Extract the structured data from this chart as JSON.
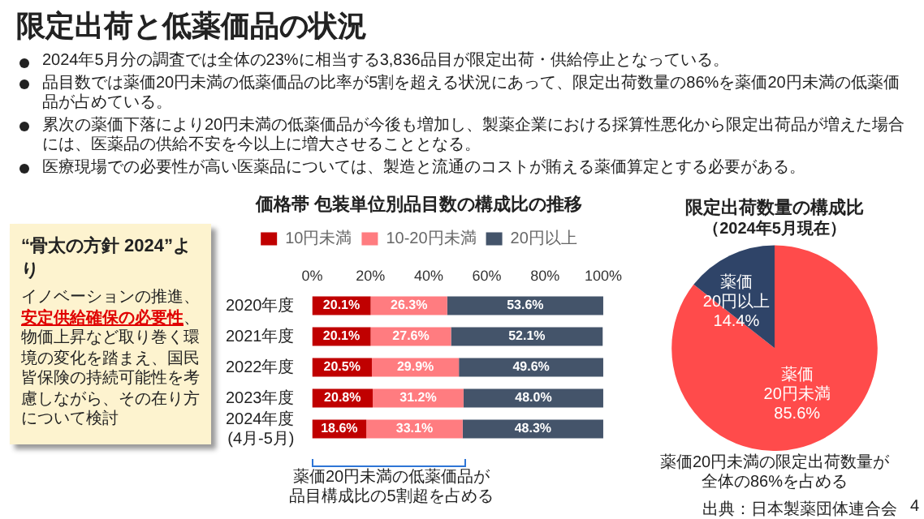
{
  "chart_data": [
    {
      "type": "other",
      "title": "限定出荷と低薬価品の状況",
      "annotations": [
        "2024年5月分の調査では全体の23%に相当する3,836品目が限定出荷・供給停止となっている。",
        "品目数では薬価20円未満の低薬価品の比率が5割を超える状況にあって、限定出荷数量の86%を薬価20円未満の低薬価品が占めている。",
        "累次の薬価下落により20円未満の低薬価品が今後も増加し、製薬企業における採算性悪化から限定出荷品が増えた場合には、医薬品の供給不安を今以上に増大させることとなる。",
        "医療現場での必要性が高い医薬品については、製造と流通のコストが賄える薬価算定とする必要がある。"
      ]
    },
    {
      "type": "other",
      "title": "“骨太の方針 2024”より",
      "annotations": [
        "イノベーションの推進、",
        "安定供給確保の必要性",
        "、物価上昇など取り巻く環境の変化を踏まえ、国民皆保険の持続可能性を考慮しながら、その在り方について検討"
      ]
    },
    {
      "type": "bar",
      "orientation": "horizontal",
      "stacked": true,
      "title": "価格帯 包装単位別品目数の構成比の推移",
      "categories": [
        "2020年度",
        "2021年度",
        "2022年度",
        "2023年度",
        "2024年度\n(4月-5月)"
      ],
      "series": [
        {
          "name": "10円未満",
          "color": "#c00000",
          "values": [
            20.1,
            20.1,
            20.5,
            20.8,
            18.6
          ],
          "value_labels": [
            "20.1%",
            "20.1%",
            "20.5%",
            "20.8%",
            "18.6%"
          ]
        },
        {
          "name": "10-20円未満",
          "color": "#ff7c80",
          "values": [
            26.3,
            27.6,
            29.9,
            31.2,
            33.1
          ],
          "value_labels": [
            "26.3%",
            "27.6%",
            "29.9%",
            "31.2%",
            "33.1%"
          ]
        },
        {
          "name": "20円以上",
          "color": "#44546a",
          "values": [
            53.6,
            52.1,
            49.6,
            48.0,
            48.3
          ],
          "value_labels": [
            "53.6%",
            "52.1%",
            "49.6%",
            "48.0%",
            "48.3%"
          ]
        }
      ],
      "xlim": [
        0,
        100
      ],
      "xticks": [
        {
          "value": 0,
          "label": "0%"
        },
        {
          "value": 20,
          "label": "20%"
        },
        {
          "value": 40,
          "label": "40%"
        },
        {
          "value": 60,
          "label": "60%"
        },
        {
          "value": 80,
          "label": "80%"
        },
        {
          "value": 100,
          "label": "100%"
        }
      ],
      "legend": "top",
      "annotations": [
        "薬価20円未満の低薬価品が品目構成比の5割超を占める"
      ]
    },
    {
      "type": "pie",
      "title": "限定出荷数量の構成比",
      "subtitle": "（2024年5月現在）",
      "categories": [
        "薬価\n20円未満",
        "薬価\n20円以上"
      ],
      "values": [
        85.6,
        14.4
      ],
      "colors": [
        "#ff4b4b",
        "#2f4468"
      ],
      "value_labels": [
        "85.6%",
        "14.4%"
      ],
      "annotations": [
        "薬価20円未満の限定出荷数量が全体の86%を占める",
        "出典：日本製薬団体連合会",
        "4"
      ]
    }
  ]
}
